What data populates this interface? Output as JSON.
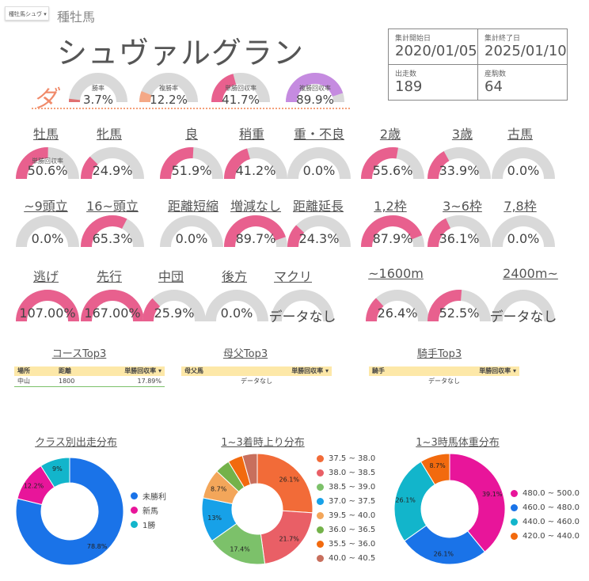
{
  "header": {
    "selector_label": "種牡馬シュヴ",
    "category": "種牡馬",
    "horse_name": "シュヴァルグラン",
    "da_mark": "ダ"
  },
  "stats": [
    {
      "label": "集計開始日",
      "value": "2020/01/05"
    },
    {
      "label": "集計終了日",
      "value": "2025/01/10"
    },
    {
      "label": "出走数",
      "value": "189"
    },
    {
      "label": "産駒数",
      "value": "64"
    }
  ],
  "colors": {
    "gauge_pink": "#e8608e",
    "gauge_bg": "#d9d9d9",
    "win_rate": "#e07070",
    "place_rate": "#f4a886",
    "single_return": "#e8608e",
    "place_return": "#c58be0",
    "table_header": "#fde8a8"
  },
  "top_gauges": [
    {
      "label": "勝率",
      "value": "3.7%",
      "fraction": 0.037,
      "color": "#e07070"
    },
    {
      "label": "複勝率",
      "value": "12.2%",
      "fraction": 0.122,
      "color": "#f4a886"
    },
    {
      "label": "単勝回収率",
      "value": "41.7%",
      "fraction": 0.417,
      "color": "#e8608e"
    },
    {
      "label": "複勝回収率",
      "value": "89.9%",
      "fraction": 0.899,
      "color": "#c58be0"
    }
  ],
  "gauge_rows": [
    [
      {
        "header": "牡馬",
        "value": "50.6%",
        "fraction": 0.506,
        "inner": "単勝回収率"
      },
      {
        "header": "牝馬",
        "value": "24.9%",
        "fraction": 0.249
      },
      {
        "header": "良",
        "value": "51.9%",
        "fraction": 0.519
      },
      {
        "header": "稍重",
        "value": "41.2%",
        "fraction": 0.412
      },
      {
        "header": "重・不良",
        "value": "0.0%",
        "fraction": 0.0
      },
      {
        "header": "2歳",
        "value": "55.6%",
        "fraction": 0.556
      },
      {
        "header": "3歳",
        "value": "33.9%",
        "fraction": 0.339
      },
      {
        "header": "古馬",
        "value": "0.0%",
        "fraction": 0.0
      }
    ],
    [
      {
        "header": "~9頭立",
        "value": "0.0%",
        "fraction": 0.0
      },
      {
        "header": "16~頭立",
        "value": "65.3%",
        "fraction": 0.653
      },
      {
        "header": "距離短縮",
        "value": "0.0%",
        "fraction": 0.0
      },
      {
        "header": "増減なし",
        "value": "89.7%",
        "fraction": 0.897
      },
      {
        "header": "距離延長",
        "value": "24.3%",
        "fraction": 0.243
      },
      {
        "header": "1,2枠",
        "value": "87.9%",
        "fraction": 0.879
      },
      {
        "header": "3~6枠",
        "value": "36.1%",
        "fraction": 0.361
      },
      {
        "header": "7,8枠",
        "value": "0.0%",
        "fraction": 0.0
      }
    ],
    [
      {
        "header": "逃げ",
        "value": "107.00%",
        "fraction": 1.0
      },
      {
        "header": "先行",
        "value": "167.00%",
        "fraction": 1.0
      },
      {
        "header": "中団",
        "value": "25.9%",
        "fraction": 0.259
      },
      {
        "header": "後方",
        "value": "0.0%",
        "fraction": 0.0
      },
      {
        "header": "マクリ",
        "value": "データなし",
        "fraction": 0.0
      },
      {
        "header": "~1600m",
        "value": "26.4%",
        "fraction": 0.264
      },
      {
        "header": "",
        "value": "52.5%",
        "fraction": 0.525
      },
      {
        "header": "2400m~",
        "value": "データなし",
        "fraction": 0.0
      }
    ]
  ],
  "tables": [
    {
      "title": "コースTop3",
      "headers": [
        "場所",
        "距離",
        "単勝回収率 ▾"
      ],
      "rows": [
        [
          "中山",
          "1800",
          "17.89%"
        ]
      ],
      "empty": ""
    },
    {
      "title": "母父Top3",
      "headers": [
        "母父馬",
        "",
        "単勝回収率 ▾"
      ],
      "rows": [],
      "empty": "データなし"
    },
    {
      "title": "騎手Top3",
      "headers": [
        "騎手",
        "",
        "単勝回収率 ▾"
      ],
      "rows": [],
      "empty": "データなし"
    }
  ],
  "chart_data": [
    {
      "type": "pie",
      "title": "クラス別出走分布",
      "categories": [
        "未勝利",
        "新馬",
        "1勝"
      ],
      "values": [
        78.8,
        12.2,
        9
      ],
      "labels": [
        "78.8%",
        "12.2%",
        "9%"
      ],
      "colors": [
        "#1a73e8",
        "#e8159a",
        "#12b5cb"
      ]
    },
    {
      "type": "pie",
      "title": "1~3着時上り分布",
      "categories": [
        "37.5 ~ 38.0",
        "38.0 ~ 38.5",
        "38.5 ~ 39.0",
        "37.0 ~ 37.5",
        "39.5 ~ 40.0",
        "36.0 ~ 36.5",
        "35.5 ~ 36.0",
        "40.0 ~ 40.5"
      ],
      "values": [
        26.1,
        21.7,
        17.4,
        13,
        8.7,
        4.35,
        4.35,
        4.35
      ],
      "labels": [
        "26.1%",
        "21.7%",
        "17.4%",
        "13%",
        "8.7%",
        "",
        "",
        ""
      ],
      "colors": [
        "#f26b38",
        "#e95f66",
        "#7cc16a",
        "#17a1e8",
        "#f3a65a",
        "#74b24a",
        "#f26a0e",
        "#c86f5d"
      ]
    },
    {
      "type": "pie",
      "title": "1~3時馬体重分布",
      "categories": [
        "480.0 ~ 500.0",
        "460.0 ~ 480.0",
        "440.0 ~ 460.0",
        "420.0 ~ 440.0"
      ],
      "values": [
        39.1,
        26.1,
        26.1,
        8.7
      ],
      "labels": [
        "39.1%",
        "26.1%",
        "26.1%",
        "8.7%"
      ],
      "colors": [
        "#e8159a",
        "#1a73e8",
        "#12b5cb",
        "#f26a0e"
      ]
    }
  ]
}
